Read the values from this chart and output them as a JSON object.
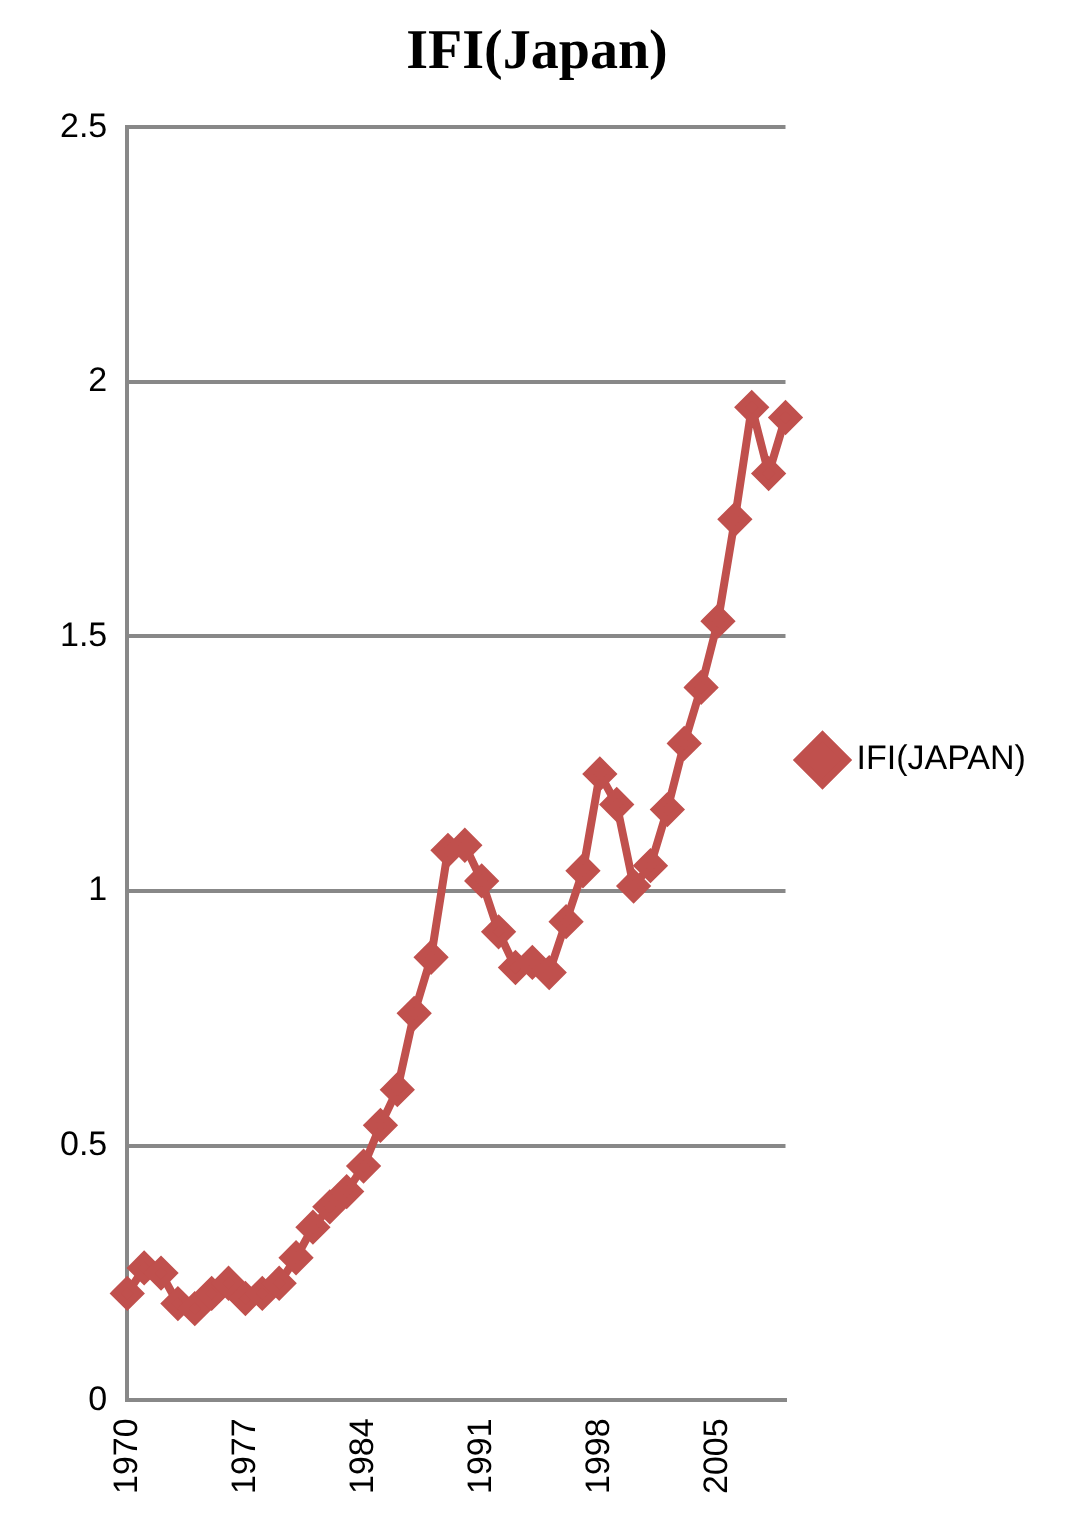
{
  "chart_data": {
    "type": "line",
    "title": "IFI(Japan)",
    "categories": [
      "1970",
      null,
      null,
      null,
      null,
      null,
      null,
      "1977",
      null,
      null,
      null,
      null,
      null,
      null,
      "1984",
      null,
      null,
      null,
      null,
      null,
      null,
      "1991",
      null,
      null,
      null,
      null,
      null,
      null,
      "1998",
      null,
      null,
      null,
      null,
      null,
      null,
      "2005",
      null,
      null,
      null,
      null
    ],
    "series": [
      {
        "name": "IFI(JAPAN)",
        "color": "#c0504d",
        "values": [
          0.21,
          0.26,
          0.25,
          0.19,
          0.18,
          0.21,
          0.23,
          0.2,
          0.21,
          0.23,
          0.28,
          0.34,
          0.38,
          0.41,
          0.46,
          0.54,
          0.61,
          0.76,
          0.87,
          1.08,
          1.09,
          1.02,
          0.92,
          0.85,
          0.86,
          0.84,
          0.94,
          1.04,
          1.23,
          1.17,
          1.01,
          1.05,
          1.16,
          1.29,
          1.4,
          1.53,
          1.73,
          1.95,
          1.82,
          1.93
        ]
      }
    ],
    "ylim": [
      0,
      2.5
    ],
    "yticks": [
      0,
      0.5,
      1,
      1.5,
      2,
      2.5
    ],
    "grid": "y",
    "legend": "right",
    "marker": "diamond",
    "line_style": "solid"
  }
}
